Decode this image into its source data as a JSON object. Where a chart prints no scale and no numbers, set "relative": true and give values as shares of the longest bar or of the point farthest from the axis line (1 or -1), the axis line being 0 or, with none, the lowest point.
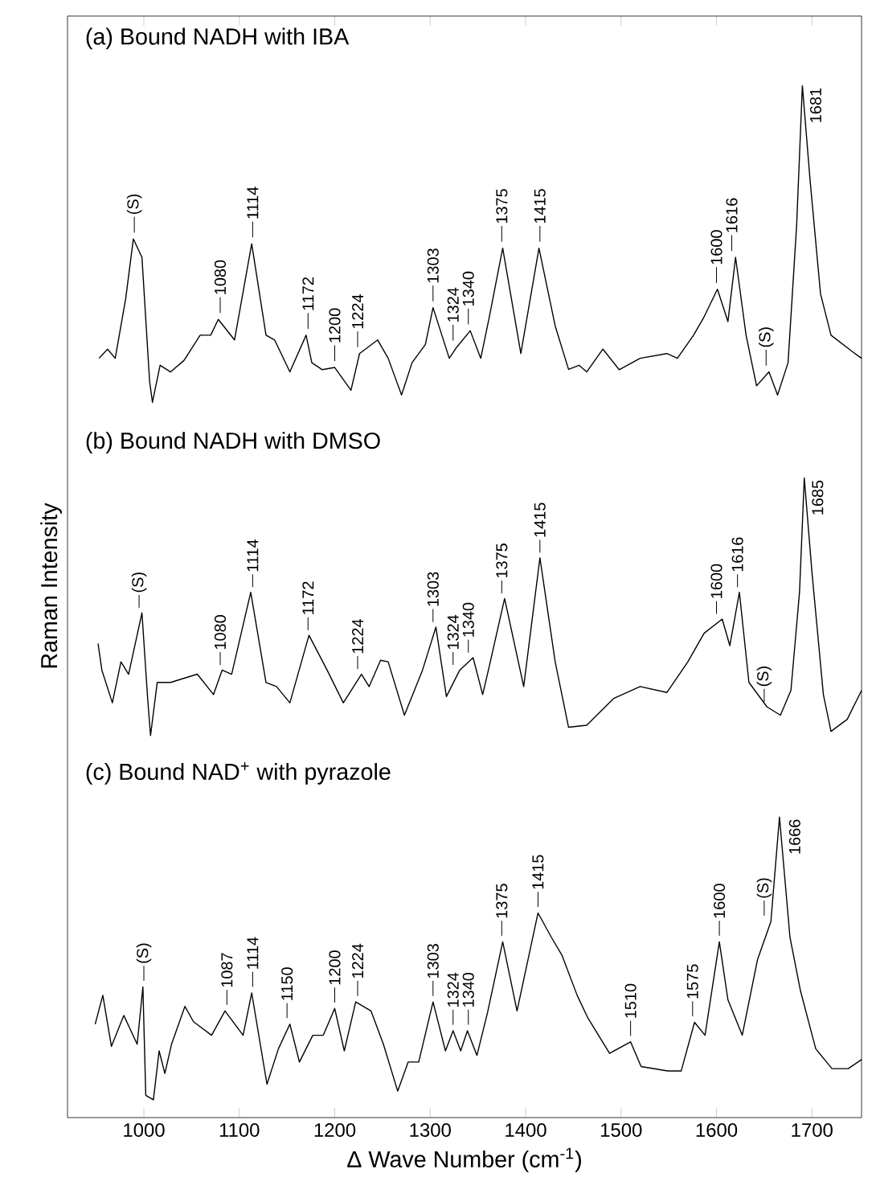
{
  "chart_data": [
    {
      "type": "line",
      "title": "(a) Bound NADH with IBA",
      "relative": true,
      "color": "#000000",
      "xlim": [
        920,
        1752
      ],
      "xticks": [
        1000,
        1100,
        1200,
        1300,
        1400,
        1500,
        1600,
        1700
      ],
      "tick_labels": false,
      "x": [
        953,
        962,
        970,
        981,
        989,
        998,
        1006,
        1009,
        1017,
        1028,
        1042,
        1059,
        1070,
        1078,
        1095,
        1113,
        1128,
        1137,
        1153,
        1170,
        1176,
        1187,
        1200,
        1217,
        1226,
        1245,
        1256,
        1270,
        1281,
        1295,
        1303,
        1320,
        1328,
        1342,
        1353,
        1362,
        1376,
        1395,
        1414,
        1431,
        1445,
        1456,
        1464,
        1481,
        1498,
        1520,
        1548,
        1559,
        1576,
        1587,
        1601,
        1612,
        1620,
        1631,
        1642,
        1655,
        1664,
        1675,
        1684,
        1690,
        1698,
        1709,
        1720,
        1742,
        1752
      ],
      "values": [
        0.139,
        0.168,
        0.139,
        0.328,
        0.516,
        0.458,
        0.067,
        0.0,
        0.117,
        0.096,
        0.132,
        0.212,
        0.212,
        0.262,
        0.197,
        0.501,
        0.212,
        0.197,
        0.096,
        0.212,
        0.125,
        0.103,
        0.11,
        0.038,
        0.154,
        0.197,
        0.139,
        0.023,
        0.125,
        0.183,
        0.299,
        0.139,
        0.175,
        0.226,
        0.139,
        0.27,
        0.487,
        0.154,
        0.487,
        0.241,
        0.104,
        0.117,
        0.096,
        0.168,
        0.103,
        0.139,
        0.154,
        0.139,
        0.212,
        0.27,
        0.357,
        0.255,
        0.458,
        0.212,
        0.052,
        0.096,
        0.023,
        0.125,
        0.56,
        1.0,
        0.704,
        0.343,
        0.212,
        0.161,
        0.139
      ],
      "annotations": [
        {
          "text": "(S)",
          "x": 990,
          "y": 0.516
        },
        {
          "text": "1080",
          "x": 1080,
          "y": 0.262
        },
        {
          "text": "1114",
          "x": 1114,
          "y": 0.501
        },
        {
          "text": "1172",
          "x": 1172,
          "y": 0.212
        },
        {
          "text": "1200",
          "x": 1200,
          "y": 0.11
        },
        {
          "text": "1224",
          "x": 1224,
          "y": 0.154
        },
        {
          "text": "1303",
          "x": 1303,
          "y": 0.299
        },
        {
          "text": "1324",
          "x": 1324,
          "y": 0.175
        },
        {
          "text": "1340",
          "x": 1340,
          "y": 0.226
        },
        {
          "text": "1375",
          "x": 1375,
          "y": 0.487
        },
        {
          "text": "1415",
          "x": 1415,
          "y": 0.487
        },
        {
          "text": "1600",
          "x": 1600,
          "y": 0.357
        },
        {
          "text": "1616",
          "x": 1616,
          "y": 0.458
        },
        {
          "text": "(S)",
          "x": 1652,
          "y": 0.096
        },
        {
          "text": "1681",
          "x": 1690,
          "y": 1.0
        }
      ]
    },
    {
      "type": "line",
      "title": "(b) Bound NADH with DMSO",
      "ylabel": "Raman Intensity",
      "relative": true,
      "color": "#000000",
      "xlim": [
        920,
        1752
      ],
      "tick_labels": false,
      "x": [
        952,
        956,
        967,
        976,
        984,
        998,
        1004,
        1007,
        1014,
        1028,
        1042,
        1056,
        1073,
        1082,
        1092,
        1112,
        1128,
        1139,
        1153,
        1173,
        1192,
        1209,
        1228,
        1236,
        1248,
        1256,
        1273,
        1292,
        1306,
        1317,
        1331,
        1345,
        1355,
        1362,
        1378,
        1398,
        1415,
        1431,
        1445,
        1464,
        1492,
        1520,
        1548,
        1570,
        1587,
        1606,
        1614,
        1624,
        1634,
        1653,
        1667,
        1678,
        1687,
        1692,
        1700,
        1712,
        1720,
        1737,
        1752
      ],
      "values": [
        0.357,
        0.254,
        0.127,
        0.286,
        0.238,
        0.476,
        0.143,
        0.0,
        0.206,
        0.206,
        0.222,
        0.238,
        0.159,
        0.254,
        0.238,
        0.556,
        0.206,
        0.19,
        0.127,
        0.389,
        0.254,
        0.127,
        0.238,
        0.19,
        0.292,
        0.286,
        0.079,
        0.254,
        0.421,
        0.151,
        0.254,
        0.302,
        0.159,
        0.27,
        0.532,
        0.19,
        0.69,
        0.286,
        0.032,
        0.04,
        0.143,
        0.19,
        0.167,
        0.286,
        0.397,
        0.452,
        0.349,
        0.556,
        0.206,
        0.111,
        0.079,
        0.175,
        0.556,
        1.0,
        0.635,
        0.159,
        0.016,
        0.063,
        0.175
      ],
      "annotations": [
        {
          "text": "(S)",
          "x": 995,
          "y": 0.476
        },
        {
          "text": "1080",
          "x": 1080,
          "y": 0.254
        },
        {
          "text": "1114",
          "x": 1114,
          "y": 0.556
        },
        {
          "text": "1172",
          "x": 1172,
          "y": 0.389
        },
        {
          "text": "1224",
          "x": 1224,
          "y": 0.238
        },
        {
          "text": "1303",
          "x": 1303,
          "y": 0.421
        },
        {
          "text": "1324",
          "x": 1324,
          "y": 0.254
        },
        {
          "text": "1340",
          "x": 1340,
          "y": 0.302
        },
        {
          "text": "1375",
          "x": 1375,
          "y": 0.532
        },
        {
          "text": "1415",
          "x": 1415,
          "y": 0.69
        },
        {
          "text": "1600",
          "x": 1600,
          "y": 0.452
        },
        {
          "text": "1616",
          "x": 1622,
          "y": 0.556
        },
        {
          "text": "(S)",
          "x": 1650,
          "y": 0.111
        },
        {
          "text": "1685",
          "x": 1692,
          "y": 1.0
        }
      ]
    },
    {
      "type": "line",
      "title": "(c) Bound NAD$^{+}$ with pyrazole",
      "xlabel": "Δ Wave Number (cm$^{-1}$)",
      "relative": true,
      "color": "#000000",
      "xlim": [
        920,
        1752
      ],
      "xticks": [
        1000,
        1100,
        1200,
        1300,
        1400,
        1500,
        1600,
        1700
      ],
      "tick_labels": "x",
      "x": [
        949,
        957,
        966,
        979,
        993,
        999,
        1002,
        1010,
        1016,
        1022,
        1029,
        1043,
        1052,
        1071,
        1085,
        1104,
        1113,
        1129,
        1141,
        1153,
        1163,
        1177,
        1188,
        1200,
        1210,
        1222,
        1238,
        1251,
        1266,
        1277,
        1288,
        1303,
        1316,
        1324,
        1332,
        1339,
        1349,
        1360,
        1376,
        1391,
        1413,
        1427,
        1438,
        1454,
        1465,
        1488,
        1510,
        1521,
        1549,
        1563,
        1577,
        1588,
        1603,
        1612,
        1627,
        1643,
        1657,
        1666,
        1677,
        1688,
        1704,
        1721,
        1738,
        1752
      ],
      "values": [
        0.311,
        0.407,
        0.237,
        0.34,
        0.244,
        0.435,
        0.074,
        0.059,
        0.222,
        0.147,
        0.244,
        0.37,
        0.319,
        0.274,
        0.355,
        0.274,
        0.415,
        0.111,
        0.229,
        0.311,
        0.185,
        0.274,
        0.274,
        0.363,
        0.222,
        0.385,
        0.355,
        0.244,
        0.088,
        0.185,
        0.185,
        0.385,
        0.222,
        0.289,
        0.222,
        0.289,
        0.207,
        0.348,
        0.585,
        0.355,
        0.681,
        0.6,
        0.541,
        0.407,
        0.333,
        0.214,
        0.252,
        0.17,
        0.155,
        0.155,
        0.317,
        0.274,
        0.585,
        0.392,
        0.274,
        0.526,
        0.652,
        1.0,
        0.6,
        0.422,
        0.229,
        0.163,
        0.163,
        0.193
      ],
      "annotations": [
        {
          "text": "(S)",
          "x": 1000,
          "y": 0.435
        },
        {
          "text": "1087",
          "x": 1087,
          "y": 0.355
        },
        {
          "text": "1114",
          "x": 1114,
          "y": 0.415
        },
        {
          "text": "1150",
          "x": 1150,
          "y": 0.311
        },
        {
          "text": "1200",
          "x": 1200,
          "y": 0.363
        },
        {
          "text": "1224",
          "x": 1224,
          "y": 0.385
        },
        {
          "text": "1303",
          "x": 1303,
          "y": 0.385
        },
        {
          "text": "1324",
          "x": 1324,
          "y": 0.289
        },
        {
          "text": "1340",
          "x": 1340,
          "y": 0.289
        },
        {
          "text": "1375",
          "x": 1375,
          "y": 0.585
        },
        {
          "text": "1415",
          "x": 1413,
          "y": 0.681
        },
        {
          "text": "1510",
          "x": 1510,
          "y": 0.252
        },
        {
          "text": "1575",
          "x": 1575,
          "y": 0.317
        },
        {
          "text": "1600",
          "x": 1603,
          "y": 0.585
        },
        {
          "text": "(S)",
          "x": 1650,
          "y": 0.652
        },
        {
          "text": "1666",
          "x": 1668,
          "y": 1.0
        }
      ]
    }
  ]
}
